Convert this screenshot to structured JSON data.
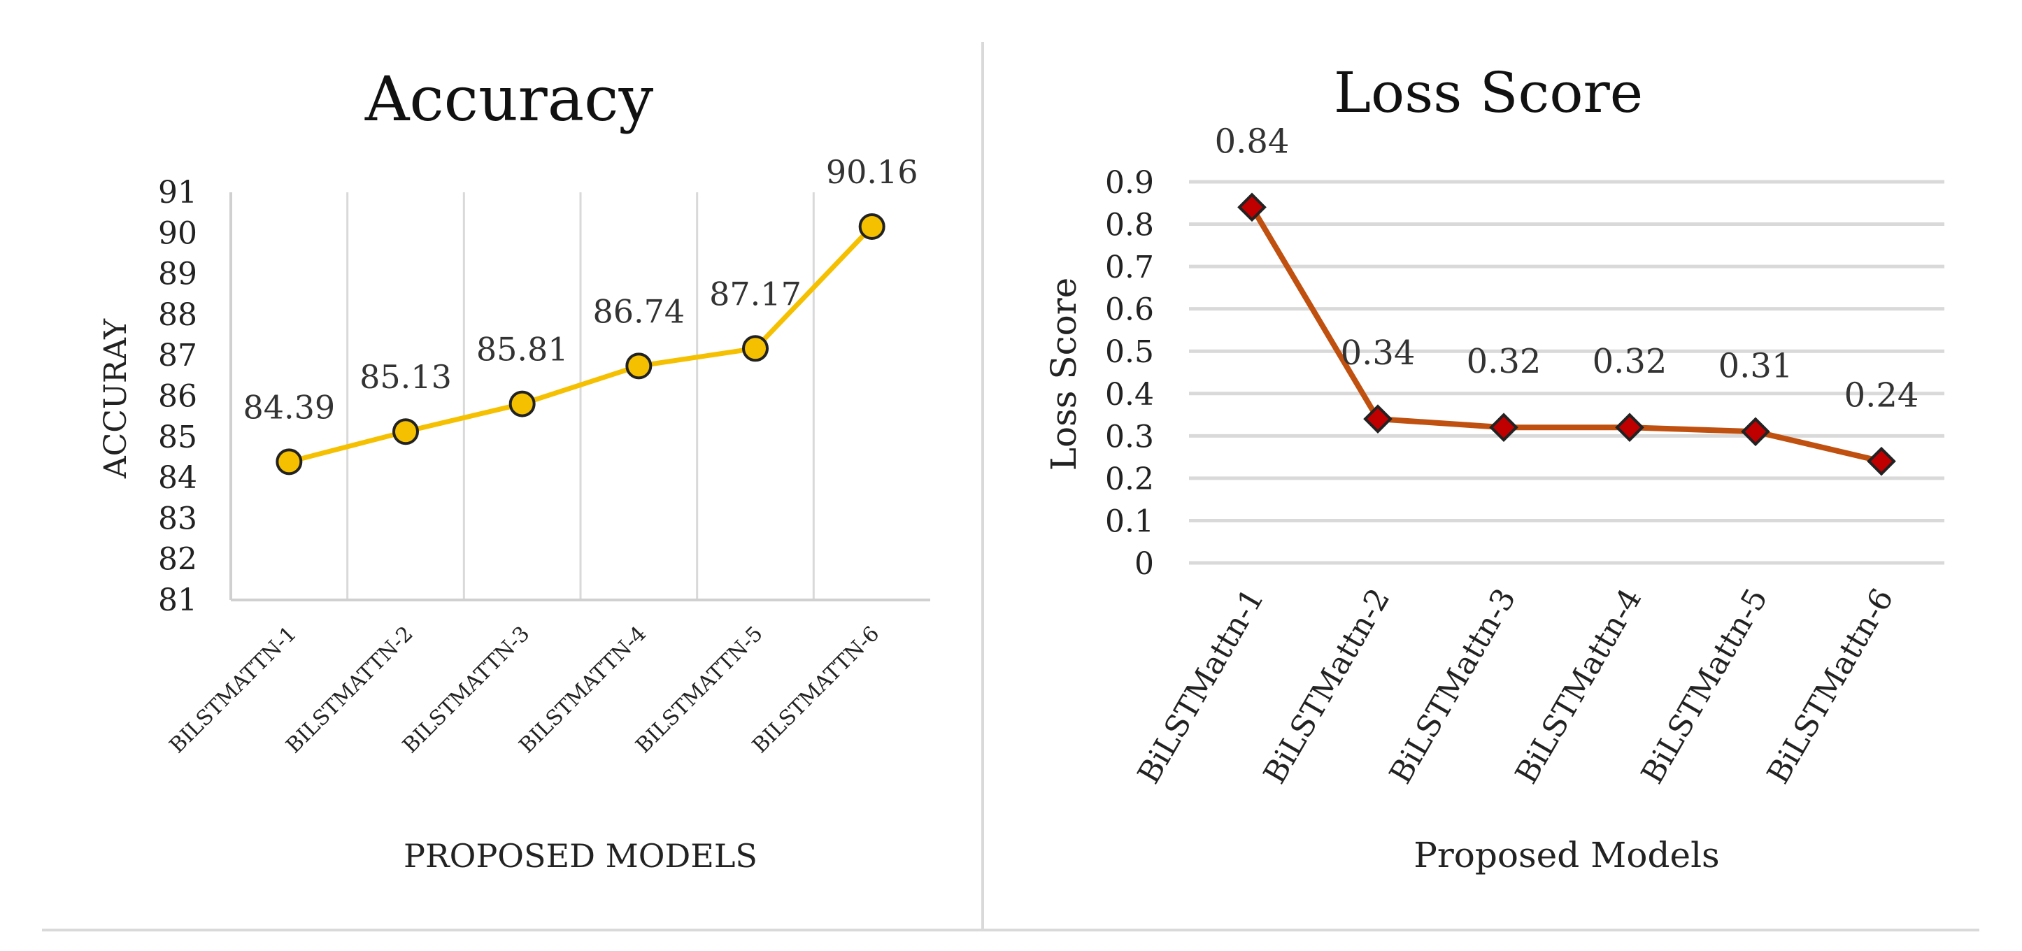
{
  "chart_data": [
    {
      "type": "line",
      "title": "Accuracy",
      "xlabel": "PROPOSED MODELS",
      "ylabel": "ACCURAY",
      "categories": [
        "BILSTMATTN-1",
        "BILSTMATTN-2",
        "BILSTMATTN-3",
        "BILSTMATTN-4",
        "BILSTMATTN-5",
        "BILSTMATTN-6"
      ],
      "ylim": [
        81,
        91
      ],
      "yticks": [
        81,
        82,
        83,
        84,
        85,
        86,
        87,
        88,
        89,
        90,
        91
      ],
      "grid": "vertical",
      "marker": "circle",
      "series": [
        {
          "name": "Accuracy",
          "values": [
            84.39,
            85.13,
            85.81,
            86.74,
            87.17,
            90.16
          ],
          "labels": [
            "84.39",
            "85.13",
            "85.81",
            "86.74",
            "87.17",
            "90.16"
          ],
          "color": "#f5c000"
        }
      ]
    },
    {
      "type": "line",
      "title": "Loss Score",
      "xlabel": "Proposed Models",
      "ylabel": "Loss Score",
      "categories": [
        "BiLSTMattn-1",
        "BiLSTMattn-2",
        "BiLSTMattn-3",
        "BiLSTMattn-4",
        "BiLSTMattn-5",
        "BiLSTMattn-6"
      ],
      "ylim": [
        0,
        0.9
      ],
      "yticks": [
        0,
        0.1,
        0.2,
        0.3,
        0.4,
        0.5,
        0.6,
        0.7,
        0.8,
        0.9
      ],
      "grid": "horizontal",
      "marker": "diamond",
      "series": [
        {
          "name": "Loss Score",
          "values": [
            0.84,
            0.34,
            0.32,
            0.32,
            0.31,
            0.24
          ],
          "labels": [
            "0.84",
            "0.34",
            "0.32",
            "0.32",
            "0.31",
            "0.24"
          ],
          "color": "#c0500f",
          "marker_color": "#c00000"
        }
      ]
    }
  ]
}
